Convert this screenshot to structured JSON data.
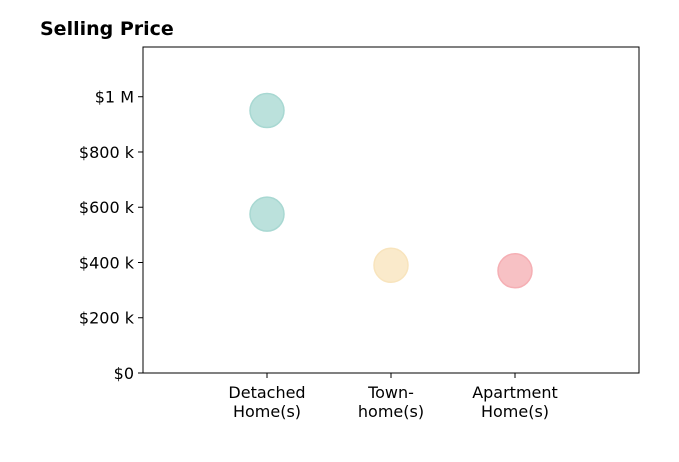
{
  "chart_data": {
    "type": "scatter",
    "title": "Selling Price",
    "xlabel": "",
    "ylabel": "",
    "categories": [
      [
        "Detached",
        "Home(s)"
      ],
      [
        "Town-",
        "home(s)"
      ],
      [
        "Apartment",
        "Home(s)"
      ]
    ],
    "xlim": [
      0,
      4
    ],
    "ylim": [
      0,
      1180000
    ],
    "y_ticks": [
      0,
      200000,
      400000,
      600000,
      800000,
      1000000
    ],
    "y_tick_labels": [
      "$0",
      "$200 k",
      "$400 k",
      "$600 k",
      "$800 k",
      "$1 M"
    ],
    "grid": false,
    "legend": "none",
    "points": [
      {
        "category_index": 0,
        "y": 950000,
        "color": "#a8d8d2"
      },
      {
        "category_index": 0,
        "y": 575000,
        "color": "#a8d8d2"
      },
      {
        "category_index": 1,
        "y": 390000,
        "color": "#f8e4bd"
      },
      {
        "category_index": 2,
        "y": 370000,
        "color": "#f5afb4"
      }
    ],
    "colors": {
      "detached": "#a8d8d2",
      "townhome": "#f8e4bd",
      "apartment": "#f5afb4"
    }
  }
}
